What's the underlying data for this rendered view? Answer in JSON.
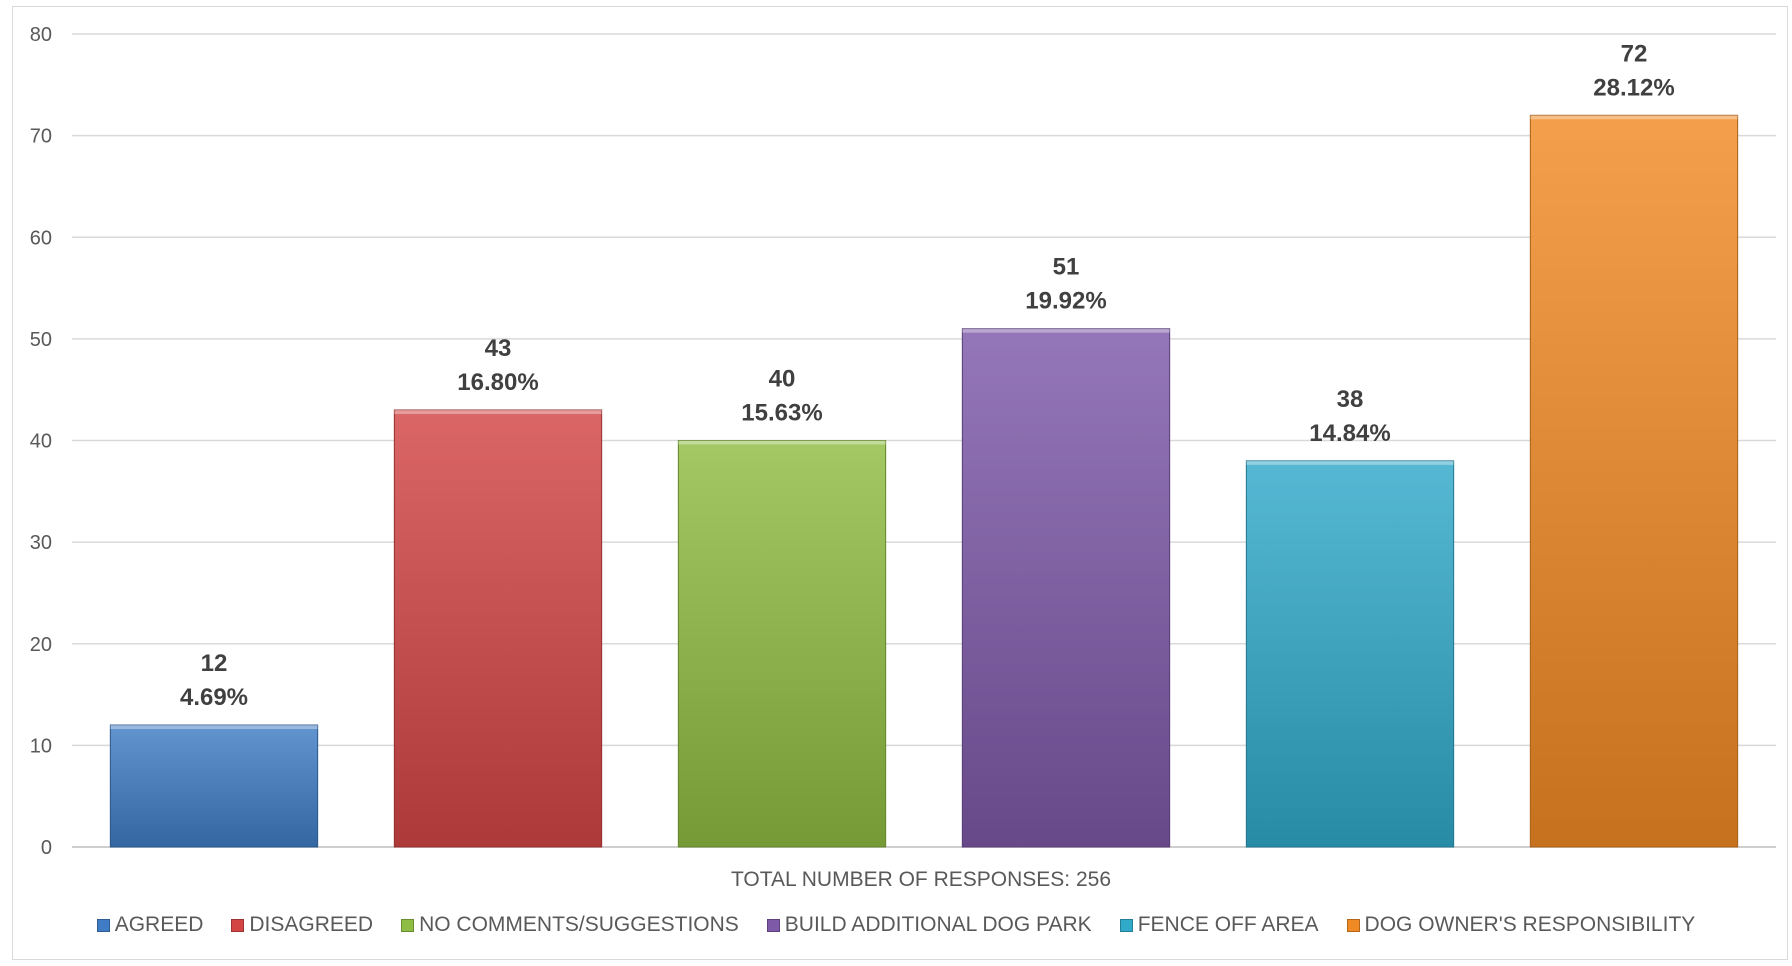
{
  "chart_data": {
    "type": "bar",
    "categories": [
      "AGREED",
      "DISAGREED",
      "NO COMMENTS/SUGGESTIONS",
      "BUILD ADDITIONAL DOG PARK",
      "FENCE OFF AREA",
      "DOG OWNER'S RESPONSIBILITY"
    ],
    "values": [
      12,
      43,
      40,
      51,
      38,
      72
    ],
    "percent_labels": [
      "4.69%",
      "16.80%",
      "15.63%",
      "19.92%",
      "14.84%",
      "28.12%"
    ],
    "colors": [
      "#3f7cc5",
      "#d34545",
      "#8fbc42",
      "#7d59a8",
      "#31a9c9",
      "#f08a24"
    ],
    "xlabel": "TOTAL NUMBER OF RESPONSES: 256",
    "ylabel": "",
    "ylim": [
      0,
      80
    ],
    "yticks": [
      0,
      10,
      20,
      30,
      40,
      50,
      60,
      70,
      80
    ],
    "grid": true,
    "legend_position": "bottom"
  }
}
